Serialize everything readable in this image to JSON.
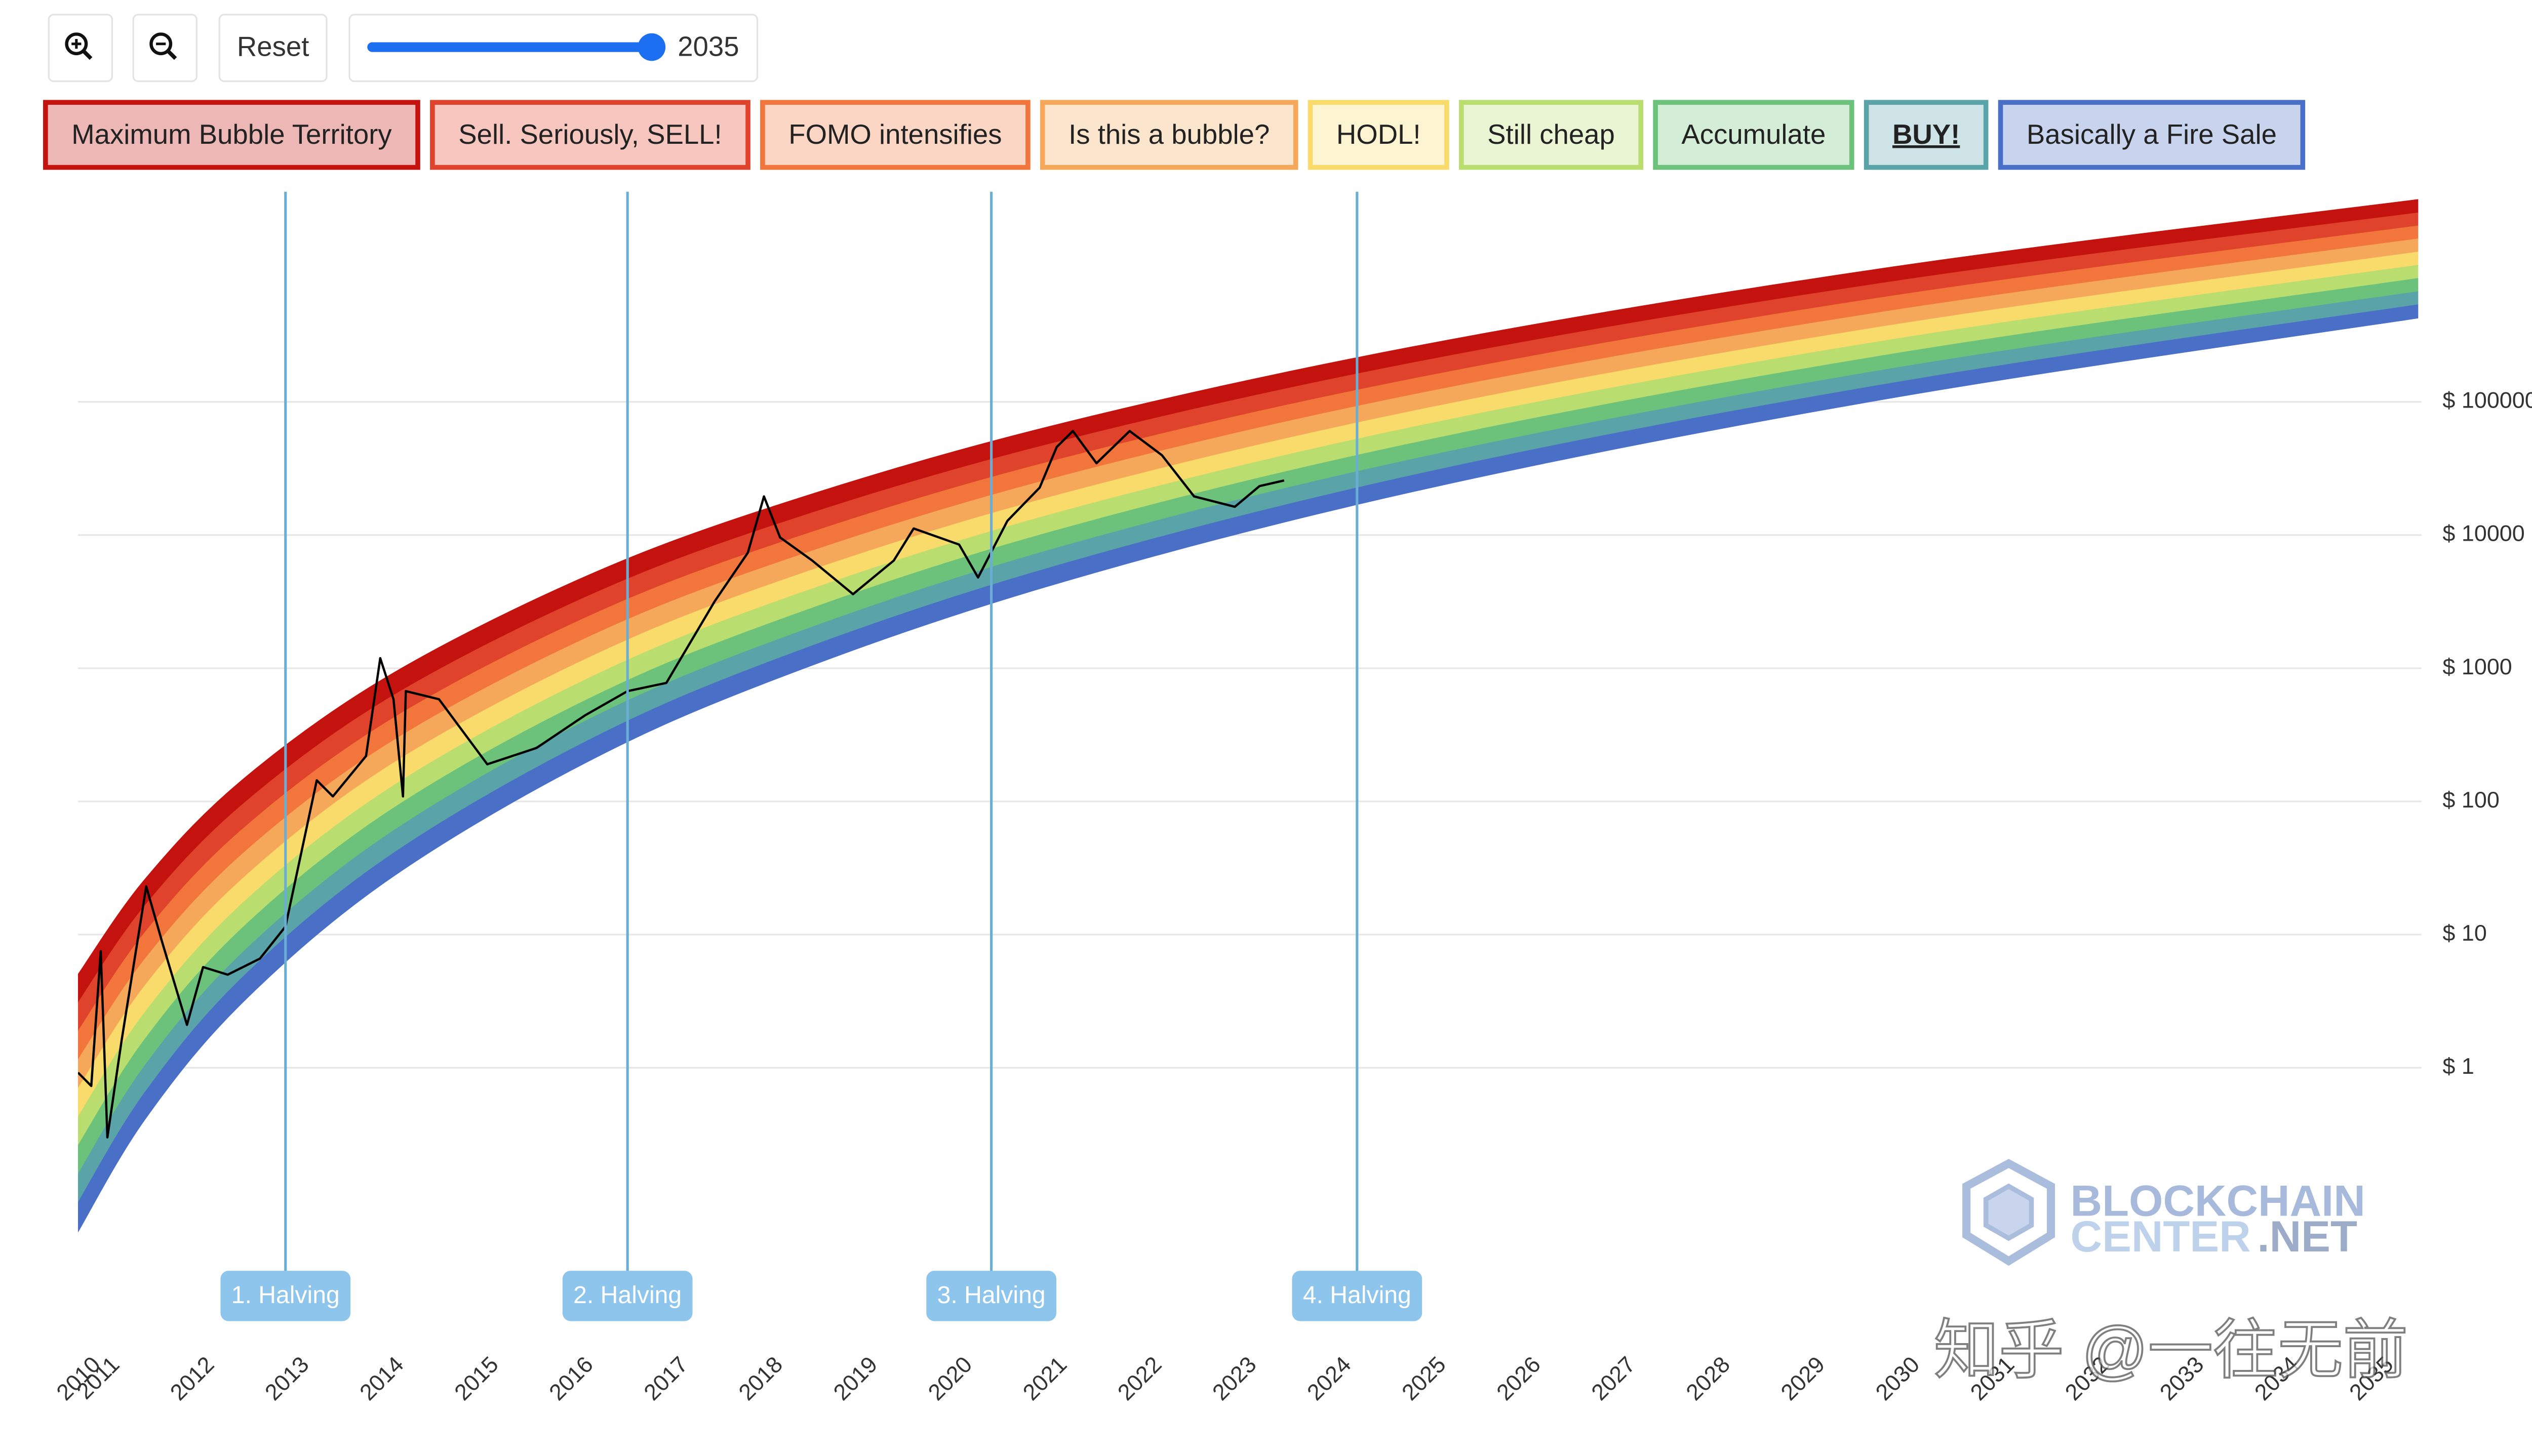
{
  "controls": {
    "reset": "Reset",
    "slider_value": 2035
  },
  "watermarks": [
    "BLOCKCHAIN",
    "CENTER",
    ".NET",
    "知乎 @一往无前"
  ],
  "chart_data": {
    "type": "rainbow",
    "log_y": true,
    "grid": true,
    "xlim": [
      2010.8,
      2035.5
    ],
    "xticks": [
      {
        "value": 2010.8,
        "label": "2010"
      },
      2011,
      2012,
      2013,
      2014,
      2015,
      2016,
      2017,
      2018,
      2019,
      2020,
      2021,
      2022,
      2023,
      2024,
      2025,
      2026,
      2027,
      2028,
      2029,
      2030,
      2031,
      2032,
      2033,
      2034,
      2035
    ],
    "ylim": [
      0.01,
      4000000
    ],
    "yticks": [
      {
        "value": 1,
        "label": "$ 1"
      },
      {
        "value": 10,
        "label": "$ 10"
      },
      {
        "value": 100,
        "label": "$ 100"
      },
      {
        "value": 1000,
        "label": "$ 1000"
      },
      {
        "value": 10000,
        "label": "$ 10000"
      },
      {
        "value": 100000,
        "label": "$ 100000"
      }
    ],
    "x": [
      2010.8,
      2011.5,
      2012.5,
      2014,
      2016,
      2018,
      2021,
      2025,
      2030,
      2035.5
    ],
    "series": [
      {
        "name": "Maximum Bubble Territory",
        "color": "#c4120e",
        "values": [
          5.0,
          25.6,
          138,
          811,
          4350,
          15200,
          63800,
          268000,
          1040000,
          3300000
        ]
      },
      {
        "name": "Sell. Seriously, SELL!",
        "color": "#e0432b",
        "values": [
          3.06,
          16.2,
          89.7,
          548,
          3030,
          10900,
          47000,
          203000,
          807000,
          2620000
        ]
      },
      {
        "name": "FOMO intensifies",
        "color": "#f2763b",
        "values": [
          1.87,
          10.2,
          58.5,
          370,
          2120,
          7780,
          34600,
          154000,
          630000,
          2090000
        ]
      },
      {
        "name": "Is this a bubble?",
        "color": "#f6a85a",
        "values": [
          1.14,
          6.43,
          38.1,
          250,
          1480,
          5570,
          25500,
          117000,
          490000,
          1670000
        ]
      },
      {
        "name": "HODL!",
        "color": "#f8db6a",
        "values": [
          0.695,
          4.06,
          24.8,
          169,
          1030,
          3990,
          18700,
          88300,
          381000,
          1330000
        ]
      },
      {
        "name": "Still cheap",
        "color": "#b9de6f",
        "values": [
          0.425,
          2.56,
          16.2,
          114,
          721,
          2860,
          13800,
          67000,
          297000,
          1060000
        ]
      },
      {
        "name": "Accumulate",
        "color": "#6cc27a",
        "values": [
          0.259,
          1.61,
          10.6,
          77.1,
          504,
          2040,
          10200,
          50800,
          231000,
          843000
        ]
      },
      {
        "name": "BUY!",
        "color": "#5aa3a8",
        "highlight": true,
        "values": [
          0.158,
          1.02,
          6.89,
          52.0,
          352,
          1460,
          7500,
          38500,
          180000,
          671000
        ]
      },
      {
        "name": "Basically a Fire Sale",
        "color": "#4a6fc6",
        "values": [
          0.0966,
          0.641,
          4.49,
          35.2,
          245,
          1050,
          5520,
          29200,
          140000,
          535000
        ]
      }
    ],
    "lower_bound": [
      0.0589,
      0.405,
      2.92,
      23.7,
      171,
      750,
      4060,
      22100,
      109000,
      427000
    ],
    "price": {
      "color": "#000000",
      "x": [
        2010.8,
        2010.94,
        2011.04,
        2011.11,
        2011.26,
        2011.52,
        2011.69,
        2011.95,
        2012.12,
        2012.38,
        2012.72,
        2012.99,
        2013.32,
        2013.49,
        2013.84,
        2013.99,
        2014.13,
        2014.23,
        2014.26,
        2014.61,
        2015.12,
        2015.64,
        2016.15,
        2016.6,
        2017.01,
        2017.52,
        2017.87,
        2018.04,
        2018.21,
        2018.55,
        2018.98,
        2019.41,
        2019.62,
        2020.1,
        2020.3,
        2020.61,
        2020.95,
        2021.13,
        2021.3,
        2021.55,
        2021.9,
        2022.24,
        2022.58,
        2023.01,
        2023.27,
        2023.53
      ],
      "values": [
        0.92,
        0.73,
        7.5,
        0.3,
        1.6,
        23,
        8.7,
        2.1,
        5.7,
        5.0,
        6.6,
        11.5,
        144,
        109,
        219,
        1190,
        585,
        109,
        673,
        585,
        190,
        252,
        442,
        673,
        776,
        3180,
        7370,
        19500,
        9600,
        6430,
        3600,
        6430,
        11200,
        8480,
        4800,
        12800,
        22700,
        45800,
        60400,
        34600,
        60400,
        39800,
        19500,
        16300,
        23300,
        25700
      ]
    },
    "halvings": [
      {
        "x": 2012.99,
        "label": "1. Halving"
      },
      {
        "x": 2016.6,
        "label": "2. Halving"
      },
      {
        "x": 2020.44,
        "label": "3. Halving"
      },
      {
        "x": 2024.3,
        "label": "4. Halving"
      }
    ]
  }
}
